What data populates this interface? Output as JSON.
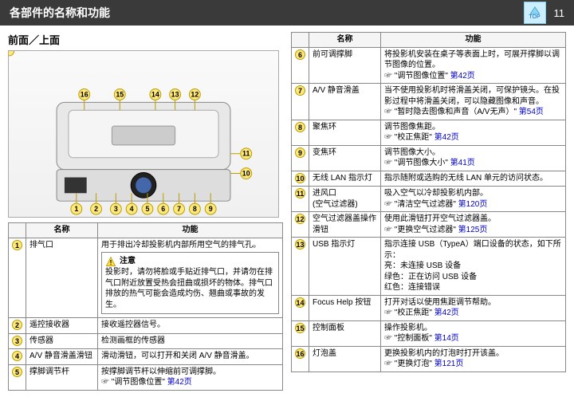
{
  "header": {
    "title": "各部件的名称和功能",
    "page": "11",
    "top_label": "TOP"
  },
  "section_title": "前面／上面",
  "table_headers": {
    "name": "名称",
    "func": "功能"
  },
  "caution": {
    "label": "注意",
    "text": "投影时，请勿将脸或手贴近排气口，并请勿在排气口附近放置受热会扭曲或损坏的物体。排气口排放的热气可能会造成灼伤、翘曲或事故的发生。"
  },
  "left_rows": [
    {
      "n": "1",
      "name": "排气口",
      "func": "用于排出冷却投影机内部所用空气的排气孔。",
      "caution": true
    },
    {
      "n": "2",
      "name": "遥控接收器",
      "func": "接收遥控器信号。"
    },
    {
      "n": "3",
      "name": "传感器",
      "func": "检测画框的传感器"
    },
    {
      "n": "4",
      "name": "A/V 静音滑盖滑钮",
      "func": "滑动滑钮，可以打开和关闭 A/V 静音滑盖。"
    },
    {
      "n": "5",
      "name": "撑脚调节杆",
      "func": "按撑脚调节杆以伸缩前可调撑脚。",
      "ref": "\"调节图像位置\" 第42页"
    }
  ],
  "right_rows": [
    {
      "n": "6",
      "name": "前可调撑脚",
      "func": "将投影机安装在桌子等表面上时，可展开撑脚以调节图像的位置。",
      "ref": "\"调节图像位置\" 第42页"
    },
    {
      "n": "7",
      "name": "A/V 静音滑盖",
      "func": "当不使用投影机时将滑盖关闭，可保护镜头。在投影过程中将滑盖关闭，可以隐藏图像和声音。",
      "ref": "\"暂时隐去图像和声音（A/V无声）\" 第54页"
    },
    {
      "n": "8",
      "name": "聚焦环",
      "func": "调节图像焦距。",
      "ref": "\"校正焦距\" 第42页"
    },
    {
      "n": "9",
      "name": "变焦环",
      "func": "调节图像大小。",
      "ref": "\"调节图像大小\" 第41页"
    },
    {
      "n": "10",
      "name": "无线 LAN 指示灯",
      "func": "指示随附或选购的无线 LAN 单元的访问状态。"
    },
    {
      "n": "11",
      "name": "进风口\n(空气过滤器)",
      "func": "吸入空气以冷却投影机内部。",
      "ref": "\"清洁空气过滤器\" 第120页"
    },
    {
      "n": "12",
      "name": "空气过滤器盖操作滑钮",
      "func": "使用此滑钮打开空气过滤器盖。",
      "ref": "\"更换空气过滤器\" 第125页"
    },
    {
      "n": "13",
      "name": "USB 指示灯",
      "func": "指示连接 USB（TypeA）端口设备的状态，如下所示：\n亮：未连接 USB 设备\n绿色：正在访问 USB 设备\n红色：连接错误"
    },
    {
      "n": "14",
      "name": "Focus Help 按钮",
      "func": "打开对话以使用焦距调节帮助。",
      "ref": "\"校正焦距\" 第42页"
    },
    {
      "n": "15",
      "name": "控制面板",
      "func": "操作投影机。",
      "ref": "\"控制面板\" 第14页"
    },
    {
      "n": "16",
      "name": "灯泡盖",
      "func": "更换投影机内的灯泡时打开该盖。",
      "ref": "\"更换灯泡\" 第121页"
    }
  ]
}
